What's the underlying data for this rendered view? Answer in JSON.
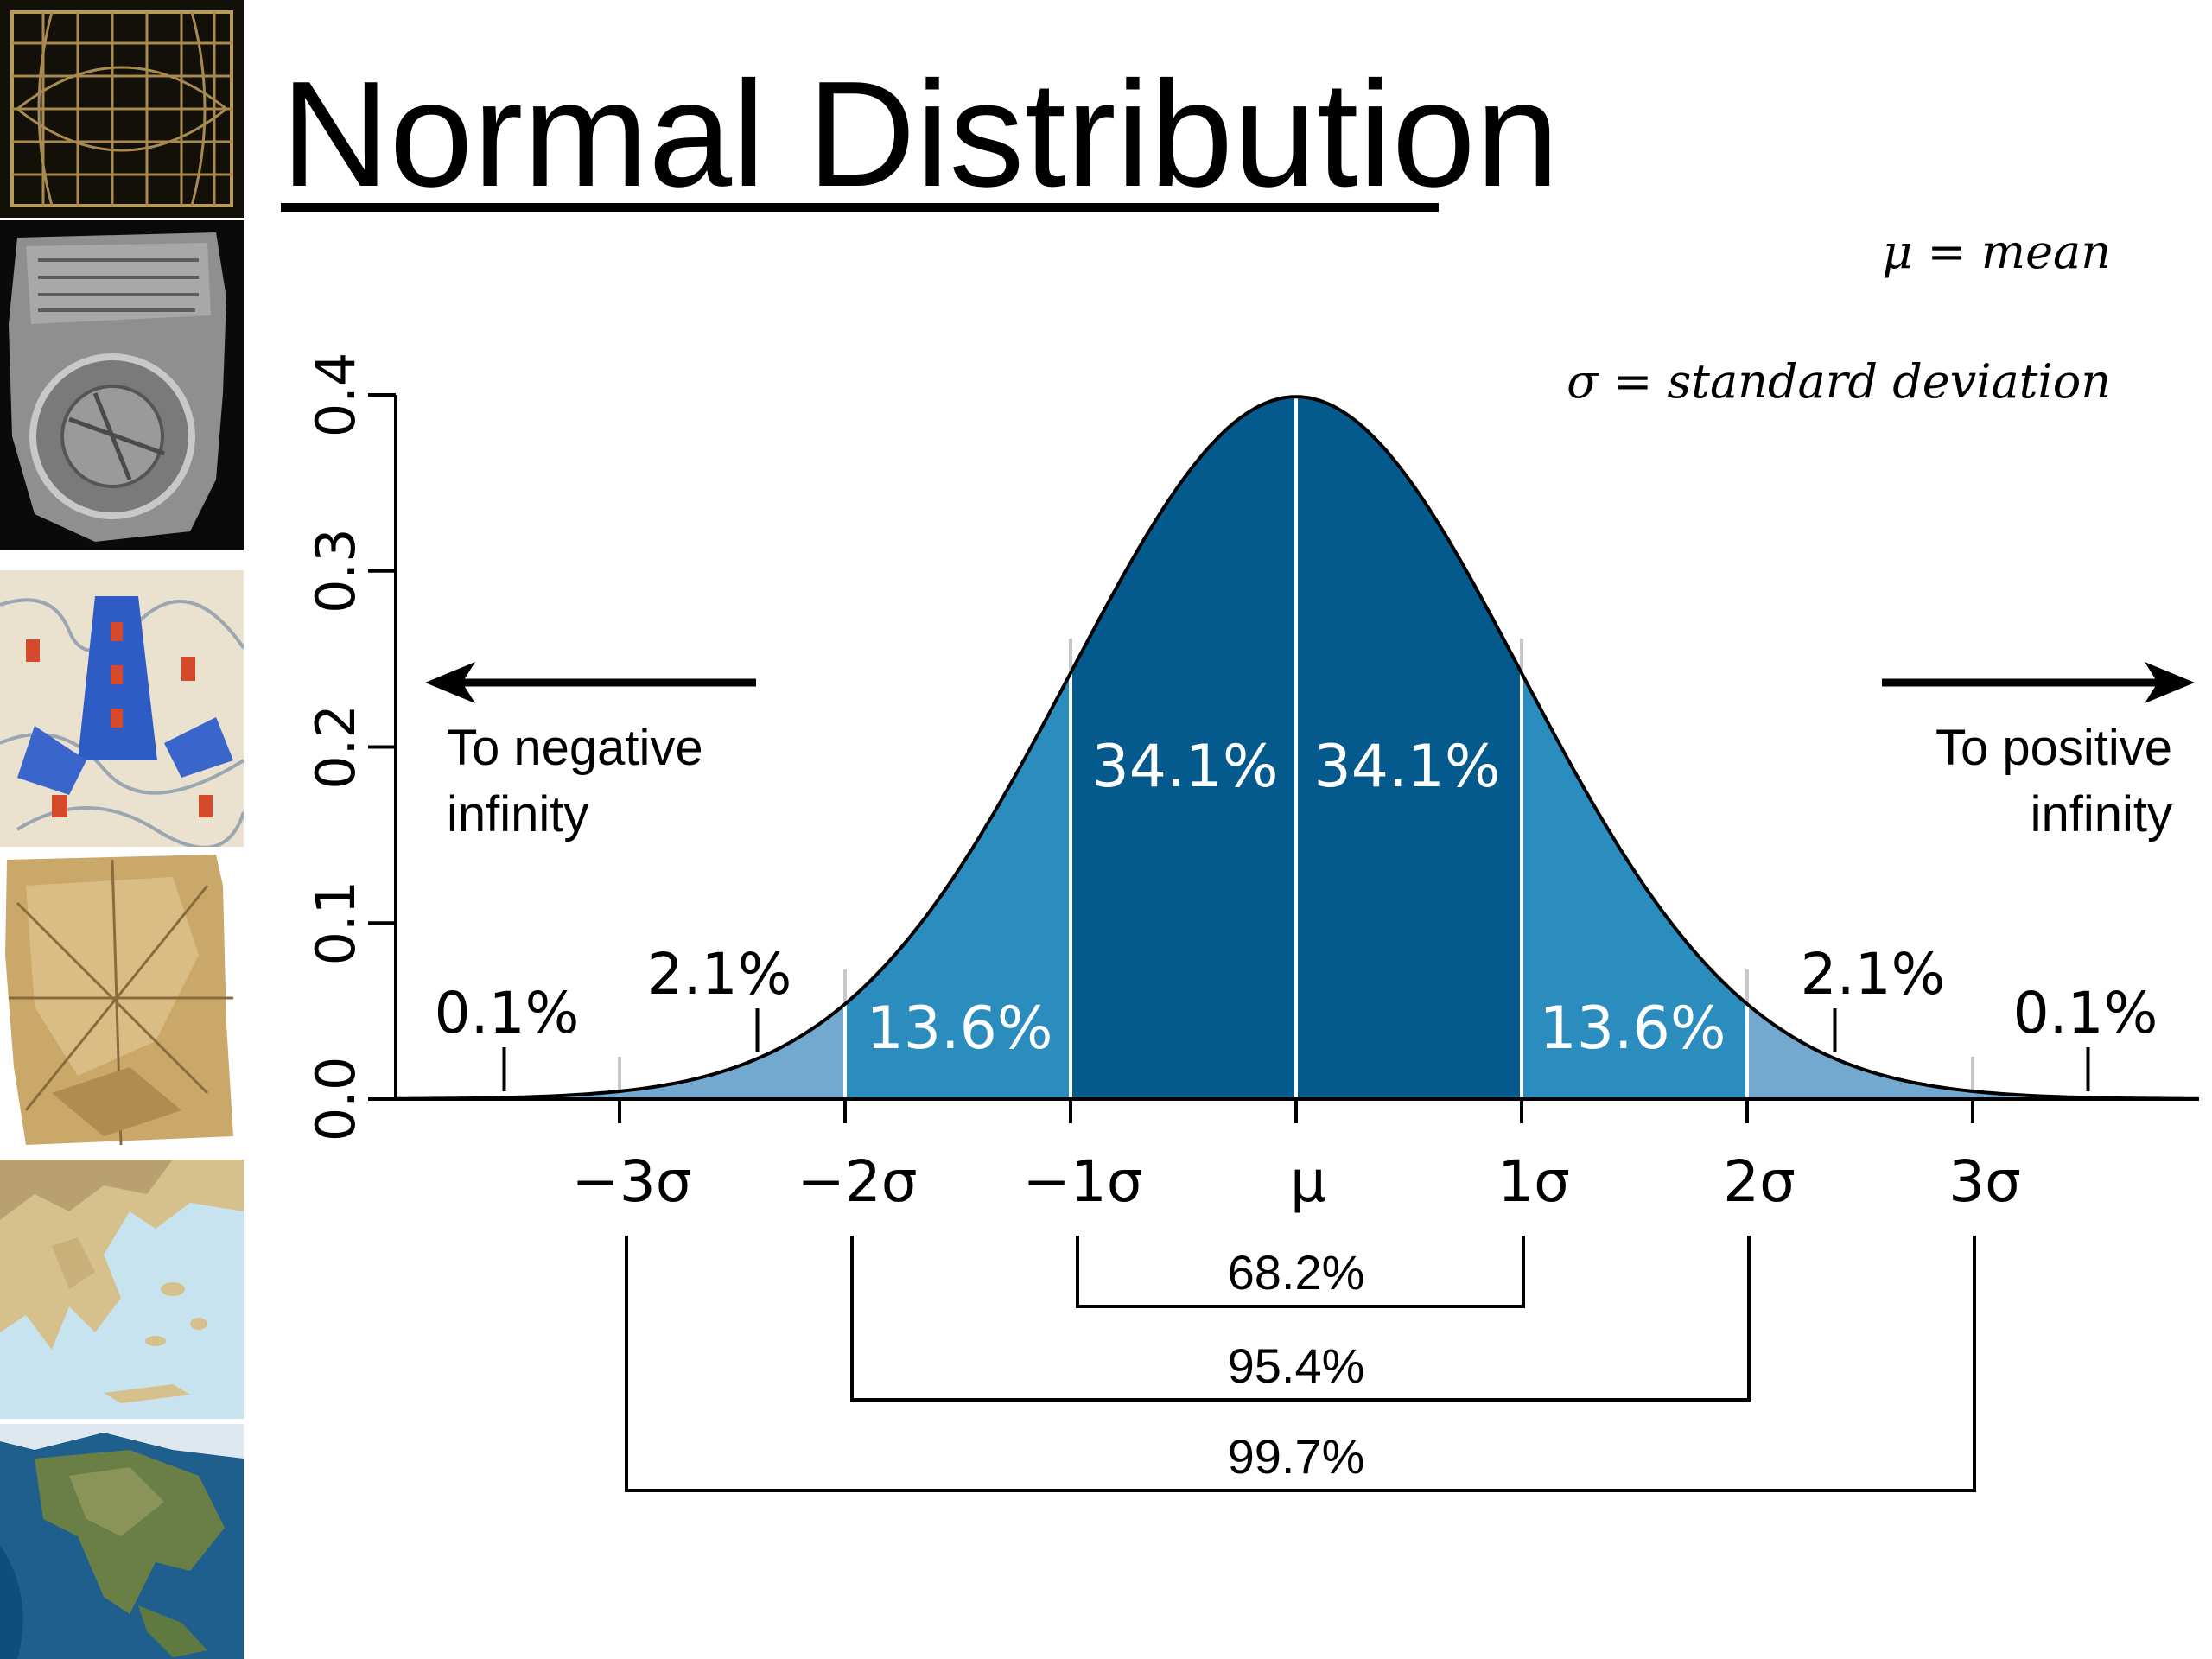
{
  "slide": {
    "title": "Normal Distribution",
    "thumbnails": [
      {
        "name": "grid-chart-thumbnail"
      },
      {
        "name": "clay-tablet-map-thumbnail"
      },
      {
        "name": "illuminated-map-thumbnail"
      },
      {
        "name": "parchment-map-thumbnail"
      },
      {
        "name": "greece-map-thumbnail"
      },
      {
        "name": "north-america-globe-thumbnail"
      }
    ]
  },
  "colors": {
    "center_band": "#045a8d",
    "middle_band": "#2b8cbe",
    "outer_band": "#74a9cf",
    "axis": "#000000"
  },
  "chart_data": {
    "type": "area",
    "title": "",
    "xlabel": "",
    "ylabel": "",
    "xlim": [
      -4,
      4
    ],
    "ylim": [
      0,
      0.4
    ],
    "y_ticks": [
      "0.0",
      "0.1",
      "0.2",
      "0.3",
      "0.4"
    ],
    "x_tick_values": [
      -3,
      -2,
      -1,
      0,
      1,
      2,
      3
    ],
    "x_ticks": [
      "−3σ",
      "−2σ",
      "−1σ",
      "μ",
      "1σ",
      "2σ",
      "3σ"
    ],
    "curve": {
      "mean": 0,
      "sd": 1
    },
    "regions": [
      {
        "from": -2,
        "to": -1,
        "label": "13.6%",
        "value": 13.6
      },
      {
        "from": -1,
        "to": 0,
        "label": "34.1%",
        "value": 34.1
      },
      {
        "from": 0,
        "to": 1,
        "label": "34.1%",
        "value": 34.1
      },
      {
        "from": 1,
        "to": 2,
        "label": "13.6%",
        "value": 13.6
      }
    ],
    "tail_labels": [
      {
        "side": "left",
        "at": -2.5,
        "label": "2.1%",
        "value": 2.1
      },
      {
        "side": "left",
        "at": -3.5,
        "label": "0.1%",
        "value": 0.1
      },
      {
        "side": "right",
        "at": 2.5,
        "label": "2.1%",
        "value": 2.1
      },
      {
        "side": "right",
        "at": 3.5,
        "label": "0.1%",
        "value": 0.1
      }
    ],
    "brackets": [
      {
        "from": -1,
        "to": 1,
        "label": "68.2%",
        "value": 68.2
      },
      {
        "from": -2,
        "to": 2,
        "label": "95.4%",
        "value": 95.4
      },
      {
        "from": -3,
        "to": 3,
        "label": "99.7%",
        "value": 99.7
      }
    ],
    "arrows": {
      "left": [
        "To negative",
        "infinity"
      ],
      "right": [
        "To positive",
        "infinity"
      ]
    },
    "legend": {
      "mean_def": "μ = mean",
      "sd_def": "σ = standard deviation"
    }
  }
}
